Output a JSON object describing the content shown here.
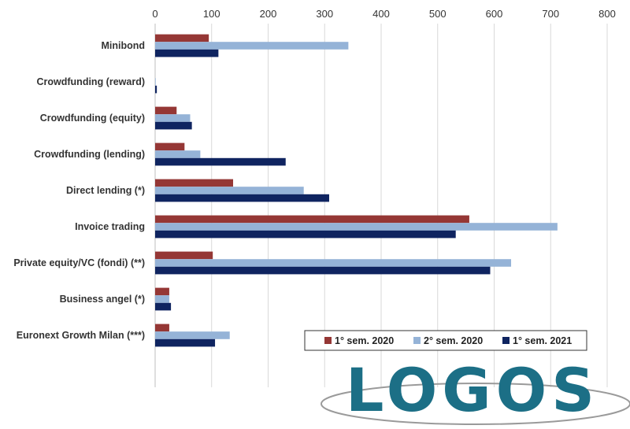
{
  "chart_data": {
    "type": "bar",
    "orientation": "horizontal",
    "title": "",
    "xlabel": "",
    "ylabel": "",
    "xlim": [
      0,
      800
    ],
    "x_ticks": [
      "0",
      "100",
      "200",
      "300",
      "400",
      "500",
      "600",
      "700",
      "800"
    ],
    "x_axis_position": "top",
    "grid": true,
    "legend_placement": "bottom-right",
    "categories": [
      "Minibond",
      "Crowdfunding (reward)",
      "Crowdfunding (equity)",
      "Crowdfunding (lending)",
      "Direct lending (*)",
      "Invoice trading",
      "Private equity/VC (fondi) (**)",
      "Business angel (*)",
      "Euronext Growth Milan (***)"
    ],
    "series": [
      {
        "name": "1° sem. 2020",
        "color": "#953735",
        "values": [
          95,
          0,
          38,
          52,
          138,
          556,
          102,
          25,
          25
        ]
      },
      {
        "name": "2° sem. 2020",
        "color": "#95B3D7",
        "values": [
          342,
          1,
          62,
          80,
          263,
          712,
          630,
          25,
          132
        ]
      },
      {
        "name": "1° sem. 2021",
        "color": "#0F2460",
        "values": [
          112,
          3,
          65,
          231,
          308,
          532,
          593,
          28,
          106
        ]
      }
    ]
  },
  "watermark": {
    "text": "LOGOS",
    "color": "#1C6F86"
  }
}
